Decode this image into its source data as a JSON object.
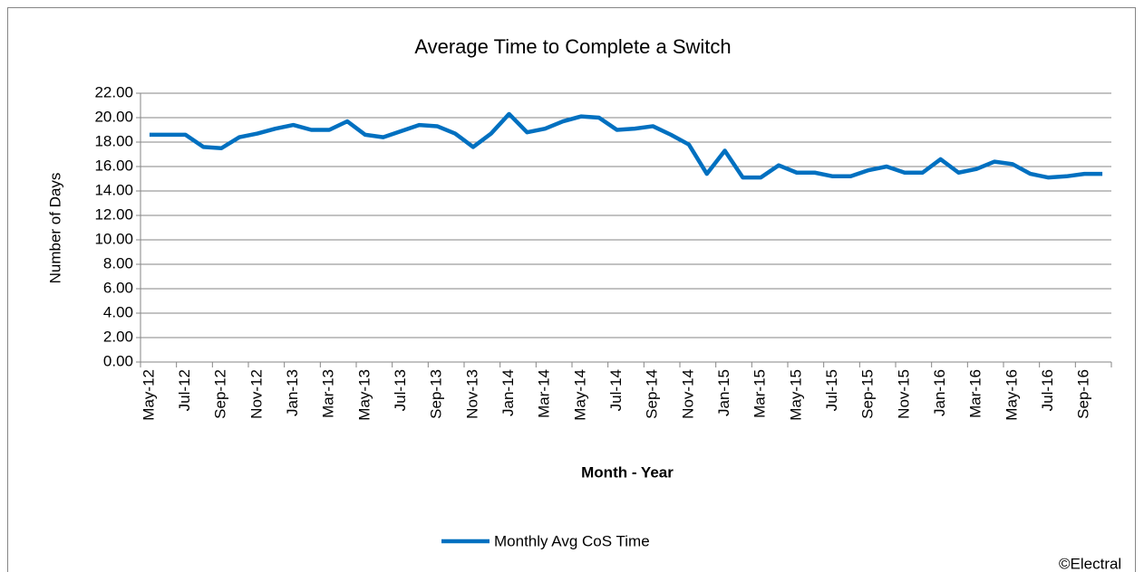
{
  "chart_data": {
    "type": "line",
    "title": "Average Time to Complete a Switch",
    "x_label": "Month - Year",
    "y_label": "Number  of Days",
    "annotation": "©Electral",
    "categories": [
      "May-12",
      null,
      "Jul-12",
      null,
      "Sep-12",
      null,
      "Nov-12",
      null,
      "Jan-13",
      null,
      "Mar-13",
      null,
      "May-13",
      null,
      "Jul-13",
      null,
      "Sep-13",
      null,
      "Nov-13",
      null,
      "Jan-14",
      null,
      "Mar-14",
      null,
      "May-14",
      null,
      "Jul-14",
      null,
      "Sep-14",
      null,
      "Nov-14",
      null,
      "Jan-15",
      null,
      "Mar-15",
      null,
      "May-15",
      null,
      "Jul-15",
      null,
      "Sep-15",
      null,
      "Nov-15",
      null,
      "Jan-16",
      null,
      "Mar-16",
      null,
      "May-16",
      null,
      "Jul-16",
      null,
      "Sep-16",
      null
    ],
    "series": [
      {
        "name": "Monthly Avg CoS Time",
        "color": "#0070c0",
        "values": [
          18.6,
          18.6,
          18.6,
          17.6,
          17.5,
          18.4,
          18.7,
          19.1,
          19.4,
          19.0,
          19.0,
          19.7,
          18.6,
          18.4,
          18.9,
          19.4,
          19.3,
          18.7,
          17.6,
          18.7,
          20.3,
          18.8,
          19.1,
          19.7,
          20.1,
          20.0,
          19.0,
          19.1,
          19.3,
          18.6,
          17.8,
          15.4,
          17.3,
          15.1,
          15.1,
          16.1,
          15.5,
          15.5,
          15.2,
          15.2,
          15.7,
          16.0,
          15.5,
          15.5,
          16.6,
          15.5,
          15.8,
          16.4,
          16.2,
          15.4,
          15.1,
          15.2,
          15.4,
          15.4
        ]
      }
    ],
    "ylim": [
      0,
      22
    ],
    "yticks": [
      {
        "value": 0,
        "label": "0.00"
      },
      {
        "value": 2,
        "label": "2.00"
      },
      {
        "value": 4,
        "label": "4.00"
      },
      {
        "value": 6,
        "label": "6.00"
      },
      {
        "value": 8,
        "label": "8.00"
      },
      {
        "value": 10,
        "label": "10.00"
      },
      {
        "value": 12,
        "label": "12.00"
      },
      {
        "value": 14,
        "label": "14.00"
      },
      {
        "value": 16,
        "label": "16.00"
      },
      {
        "value": 18,
        "label": "18.00"
      },
      {
        "value": 20,
        "label": "20.00"
      },
      {
        "value": 22,
        "label": "22.00"
      }
    ],
    "grid": true,
    "legend": "bottom"
  }
}
